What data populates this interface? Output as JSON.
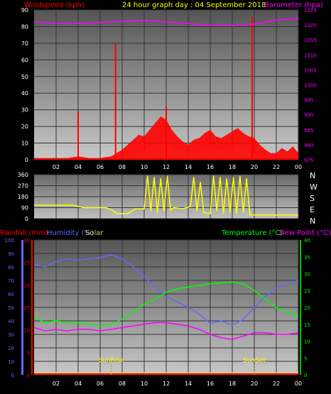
{
  "header": {
    "wind_title": "Windspeed (kph)",
    "day_title": "24 hour graph day : 04 September 2018",
    "baro_title": "Barometer (hpa)"
  },
  "colors": {
    "wind": "#ff0000",
    "gust_fill": "#ccffcc",
    "baro": "#ff00ff",
    "winddir": "#ffff00",
    "rain": "#ff0000",
    "humidity": "#6666ff",
    "solar": "#cccc66",
    "temperature": "#00ff00",
    "dewpoint": "#ff00ff",
    "grid": "#333333",
    "axis_text": "#ffffff"
  },
  "bottom_legend": {
    "rain": "Rainfall (mm)",
    "humidity": "Humidity (%)",
    "solar": "Solar",
    "temperature": "Temperature (°C)",
    "dewpoint": "Dew Point (°C)"
  },
  "compass": [
    "N",
    "W",
    "S",
    "E",
    "N"
  ],
  "markers": {
    "sunrise": "SunRise",
    "sunset": "SunSet"
  },
  "chart_data": [
    {
      "type": "line",
      "panel": "wind_baro",
      "x_ticks": [
        "02",
        "04",
        "06",
        "08",
        "10",
        "12",
        "14",
        "16",
        "18",
        "20",
        "22",
        "00"
      ],
      "y_left_ticks": [
        0,
        10,
        20,
        30,
        40,
        50,
        60,
        70,
        80,
        90
      ],
      "y_left_range": [
        0,
        90
      ],
      "y_right_ticks": [
        975,
        980,
        985,
        990,
        995,
        1000,
        1005,
        1010,
        1015,
        1020,
        1025
      ],
      "y_right_range": [
        975,
        1025
      ],
      "wind_spikes": [
        {
          "x": 4.0,
          "v": 29
        },
        {
          "x": 7.4,
          "v": 70
        },
        {
          "x": 12.0,
          "v": 32
        },
        {
          "x": 19.8,
          "v": 86
        }
      ],
      "wind_base": [
        {
          "x": 0,
          "v": 1
        },
        {
          "x": 1,
          "v": 1
        },
        {
          "x": 2,
          "v": 1
        },
        {
          "x": 3,
          "v": 1
        },
        {
          "x": 4,
          "v": 2
        },
        {
          "x": 5,
          "v": 1
        },
        {
          "x": 6,
          "v": 1
        },
        {
          "x": 7,
          "v": 2
        },
        {
          "x": 7.5,
          "v": 4
        },
        {
          "x": 8,
          "v": 6
        },
        {
          "x": 8.5,
          "v": 9
        },
        {
          "x": 9,
          "v": 12
        },
        {
          "x": 9.5,
          "v": 15
        },
        {
          "x": 10,
          "v": 14
        },
        {
          "x": 10.5,
          "v": 18
        },
        {
          "x": 11,
          "v": 22
        },
        {
          "x": 11.5,
          "v": 26
        },
        {
          "x": 12,
          "v": 24
        },
        {
          "x": 12.5,
          "v": 18
        },
        {
          "x": 13,
          "v": 14
        },
        {
          "x": 13.5,
          "v": 11
        },
        {
          "x": 14,
          "v": 9
        },
        {
          "x": 14.5,
          "v": 12
        },
        {
          "x": 15,
          "v": 13
        },
        {
          "x": 15.5,
          "v": 16
        },
        {
          "x": 16,
          "v": 18
        },
        {
          "x": 16.5,
          "v": 14
        },
        {
          "x": 17,
          "v": 13
        },
        {
          "x": 17.5,
          "v": 15
        },
        {
          "x": 18,
          "v": 17
        },
        {
          "x": 18.5,
          "v": 19
        },
        {
          "x": 19,
          "v": 16
        },
        {
          "x": 19.5,
          "v": 14
        },
        {
          "x": 20,
          "v": 13
        },
        {
          "x": 20.5,
          "v": 9
        },
        {
          "x": 21,
          "v": 6
        },
        {
          "x": 21.5,
          "v": 4
        },
        {
          "x": 22,
          "v": 4
        },
        {
          "x": 22.5,
          "v": 7
        },
        {
          "x": 23,
          "v": 5
        },
        {
          "x": 23.5,
          "v": 8
        },
        {
          "x": 24,
          "v": 4
        }
      ],
      "gust_area": [
        {
          "x": 9,
          "v": 2
        },
        {
          "x": 10,
          "v": 6
        },
        {
          "x": 11,
          "v": 9
        },
        {
          "x": 12,
          "v": 10
        },
        {
          "x": 13,
          "v": 6
        },
        {
          "x": 14,
          "v": 4
        },
        {
          "x": 15,
          "v": 5
        },
        {
          "x": 16,
          "v": 8
        },
        {
          "x": 17,
          "v": 6
        },
        {
          "x": 18,
          "v": 7
        },
        {
          "x": 19,
          "v": 8
        },
        {
          "x": 20,
          "v": 4
        },
        {
          "x": 21,
          "v": 1
        }
      ],
      "barometer": [
        {
          "x": 0,
          "v": 1021
        },
        {
          "x": 2,
          "v": 1020.5
        },
        {
          "x": 4,
          "v": 1020.5
        },
        {
          "x": 6,
          "v": 1020.8
        },
        {
          "x": 8,
          "v": 1021.2
        },
        {
          "x": 10,
          "v": 1021.5
        },
        {
          "x": 12,
          "v": 1021.0
        },
        {
          "x": 14,
          "v": 1020.5
        },
        {
          "x": 16,
          "v": 1019.8
        },
        {
          "x": 18,
          "v": 1019.8
        },
        {
          "x": 20,
          "v": 1020.3
        },
        {
          "x": 22,
          "v": 1021.6
        },
        {
          "x": 24,
          "v": 1022.2
        }
      ]
    },
    {
      "type": "line",
      "panel": "wind_direction",
      "y_ticks": [
        0,
        90,
        180,
        270,
        360
      ],
      "y_range": [
        0,
        360
      ],
      "direction": [
        {
          "x": 0,
          "v": 110
        },
        {
          "x": 2,
          "v": 110
        },
        {
          "x": 3.5,
          "v": 110
        },
        {
          "x": 4.5,
          "v": 90
        },
        {
          "x": 6.5,
          "v": 90
        },
        {
          "x": 7,
          "v": 75
        },
        {
          "x": 7.5,
          "v": 40
        },
        {
          "x": 8.5,
          "v": 40
        },
        {
          "x": 9.2,
          "v": 80
        },
        {
          "x": 10,
          "v": 80
        },
        {
          "x": 10.3,
          "v": 350
        },
        {
          "x": 10.6,
          "v": 60
        },
        {
          "x": 10.9,
          "v": 340
        },
        {
          "x": 11.2,
          "v": 50
        },
        {
          "x": 11.5,
          "v": 330
        },
        {
          "x": 11.8,
          "v": 60
        },
        {
          "x": 12.1,
          "v": 350
        },
        {
          "x": 12.4,
          "v": 70
        },
        {
          "x": 12.7,
          "v": 90
        },
        {
          "x": 13.5,
          "v": 80
        },
        {
          "x": 14.2,
          "v": 100
        },
        {
          "x": 14.5,
          "v": 340
        },
        {
          "x": 14.8,
          "v": 60
        },
        {
          "x": 15.1,
          "v": 300
        },
        {
          "x": 15.4,
          "v": 50
        },
        {
          "x": 16,
          "v": 40
        },
        {
          "x": 16.3,
          "v": 350
        },
        {
          "x": 16.6,
          "v": 60
        },
        {
          "x": 16.9,
          "v": 340
        },
        {
          "x": 17.2,
          "v": 40
        },
        {
          "x": 17.5,
          "v": 330
        },
        {
          "x": 17.8,
          "v": 50
        },
        {
          "x": 18.1,
          "v": 340
        },
        {
          "x": 18.4,
          "v": 40
        },
        {
          "x": 18.7,
          "v": 350
        },
        {
          "x": 19,
          "v": 50
        },
        {
          "x": 19.3,
          "v": 330
        },
        {
          "x": 19.6,
          "v": 30
        },
        {
          "x": 20,
          "v": 30
        },
        {
          "x": 22,
          "v": 30
        },
        {
          "x": 24,
          "v": 30
        }
      ]
    },
    {
      "type": "line",
      "panel": "temp_humidity",
      "y_left_ticks": [
        0,
        10,
        20,
        30,
        40,
        50,
        60,
        70,
        80,
        90,
        100
      ],
      "y_left_range": [
        0,
        100
      ],
      "y_rain_ticks": [
        0,
        5,
        10,
        15,
        20,
        25,
        30
      ],
      "y_rain_range": [
        0,
        30
      ],
      "y_right_ticks": [
        0,
        5,
        10,
        15,
        20,
        25,
        30,
        35,
        40
      ],
      "y_right_range": [
        0,
        40
      ],
      "humidity": [
        {
          "x": 0,
          "v": 82
        },
        {
          "x": 1,
          "v": 80
        },
        {
          "x": 2,
          "v": 84
        },
        {
          "x": 3,
          "v": 86
        },
        {
          "x": 4,
          "v": 85
        },
        {
          "x": 5,
          "v": 86
        },
        {
          "x": 6,
          "v": 87
        },
        {
          "x": 7,
          "v": 89
        },
        {
          "x": 8,
          "v": 86
        },
        {
          "x": 9,
          "v": 80
        },
        {
          "x": 10,
          "v": 73
        },
        {
          "x": 11,
          "v": 65
        },
        {
          "x": 12,
          "v": 58
        },
        {
          "x": 13,
          "v": 54
        },
        {
          "x": 14,
          "v": 50
        },
        {
          "x": 15,
          "v": 45
        },
        {
          "x": 16,
          "v": 38
        },
        {
          "x": 17,
          "v": 40
        },
        {
          "x": 18,
          "v": 37
        },
        {
          "x": 19,
          "v": 41
        },
        {
          "x": 20,
          "v": 50
        },
        {
          "x": 21,
          "v": 58
        },
        {
          "x": 22,
          "v": 64
        },
        {
          "x": 23,
          "v": 68
        },
        {
          "x": 24,
          "v": 70
        }
      ],
      "temperature": [
        {
          "x": 0,
          "v": 17
        },
        {
          "x": 1,
          "v": 15.5
        },
        {
          "x": 2,
          "v": 16
        },
        {
          "x": 3,
          "v": 15.5
        },
        {
          "x": 4,
          "v": 15.5
        },
        {
          "x": 5,
          "v": 15
        },
        {
          "x": 6,
          "v": 14.5
        },
        {
          "x": 7,
          "v": 15
        },
        {
          "x": 8,
          "v": 16.5
        },
        {
          "x": 9,
          "v": 18.5
        },
        {
          "x": 10,
          "v": 21
        },
        {
          "x": 11,
          "v": 22.5
        },
        {
          "x": 12,
          "v": 24.5
        },
        {
          "x": 13,
          "v": 25.5
        },
        {
          "x": 14,
          "v": 26
        },
        {
          "x": 15,
          "v": 26.5
        },
        {
          "x": 16,
          "v": 27
        },
        {
          "x": 17,
          "v": 27.3
        },
        {
          "x": 18,
          "v": 27.5
        },
        {
          "x": 19,
          "v": 27
        },
        {
          "x": 20,
          "v": 25
        },
        {
          "x": 21,
          "v": 22.5
        },
        {
          "x": 22,
          "v": 20
        },
        {
          "x": 23,
          "v": 18.5
        },
        {
          "x": 24,
          "v": 17.5
        }
      ],
      "dewpoint": [
        {
          "x": 0,
          "v": 14
        },
        {
          "x": 1,
          "v": 13
        },
        {
          "x": 2,
          "v": 13.5
        },
        {
          "x": 3,
          "v": 13
        },
        {
          "x": 4,
          "v": 13.5
        },
        {
          "x": 5,
          "v": 13.5
        },
        {
          "x": 6,
          "v": 13
        },
        {
          "x": 7,
          "v": 13.5
        },
        {
          "x": 8,
          "v": 14
        },
        {
          "x": 9,
          "v": 14.5
        },
        {
          "x": 10,
          "v": 15
        },
        {
          "x": 11,
          "v": 15.5
        },
        {
          "x": 12,
          "v": 15.5
        },
        {
          "x": 13,
          "v": 15
        },
        {
          "x": 14,
          "v": 14.5
        },
        {
          "x": 15,
          "v": 13.5
        },
        {
          "x": 16,
          "v": 12
        },
        {
          "x": 17,
          "v": 11
        },
        {
          "x": 18,
          "v": 10.5
        },
        {
          "x": 19,
          "v": 11.5
        },
        {
          "x": 20,
          "v": 12.5
        },
        {
          "x": 21,
          "v": 12.5
        },
        {
          "x": 22,
          "v": 12
        },
        {
          "x": 23,
          "v": 12
        },
        {
          "x": 24,
          "v": 12.5
        }
      ],
      "rainfall": 0,
      "sunrise_hour": 7.0,
      "sunset_hour": 20.0
    }
  ]
}
